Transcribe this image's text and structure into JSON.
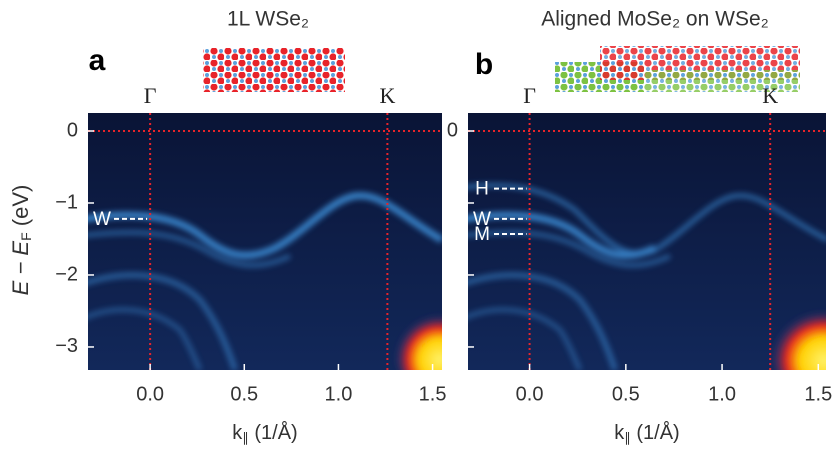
{
  "y_label": {
    "main": "E − E",
    "sub": "F",
    "unit": "(eV)"
  },
  "chart_data": [
    {
      "type": "heatmap",
      "panel": "a",
      "title": "1L WSe₂",
      "x_label": {
        "main": "k",
        "sub": "∥",
        "unit": "(1/Å)"
      },
      "xlim": [
        -0.33,
        1.55
      ],
      "ylim": [
        0.25,
        -3.32
      ],
      "xticks": [
        {
          "value": 0,
          "label": "0.0"
        },
        0.5,
        {
          "value": 1,
          "label": "1.0"
        },
        1.5
      ],
      "yticks": [
        0,
        {
          "value": -1,
          "label": "−1"
        },
        {
          "value": -2,
          "label": "−2"
        },
        {
          "value": -3,
          "label": "−3"
        }
      ],
      "points": [
        {
          "label": "Γ",
          "x": 0
        },
        {
          "label": "K",
          "x": 1.26
        }
      ],
      "hlines": [
        0
      ],
      "bands": [
        {
          "label": "W",
          "y": -1.22
        }
      ]
    },
    {
      "type": "heatmap",
      "panel": "b",
      "title": "Aligned MoSe₂ on WSe₂",
      "x_label": {
        "main": "k",
        "sub": "∥",
        "unit": "(1/Å)"
      },
      "xlim": [
        -0.32,
        1.54
      ],
      "ylim": [
        0.25,
        -3.32
      ],
      "xticks": [
        {
          "value": 0,
          "label": "0.0"
        },
        0.5,
        {
          "value": 1,
          "label": "1.0"
        },
        1.5
      ],
      "yticks": [
        0,
        {
          "value": -1,
          "label": "−1"
        },
        {
          "value": -2,
          "label": "−2"
        },
        {
          "value": -3,
          "label": "−3"
        }
      ],
      "points": [
        {
          "label": "Γ",
          "x": 0
        },
        {
          "label": "K",
          "x": 1.25
        }
      ],
      "hlines": [
        0
      ],
      "bands": [
        {
          "label": "H",
          "y": -0.8
        },
        {
          "label": "W",
          "y": -1.22
        },
        {
          "label": "M",
          "y": -1.43
        }
      ]
    }
  ]
}
